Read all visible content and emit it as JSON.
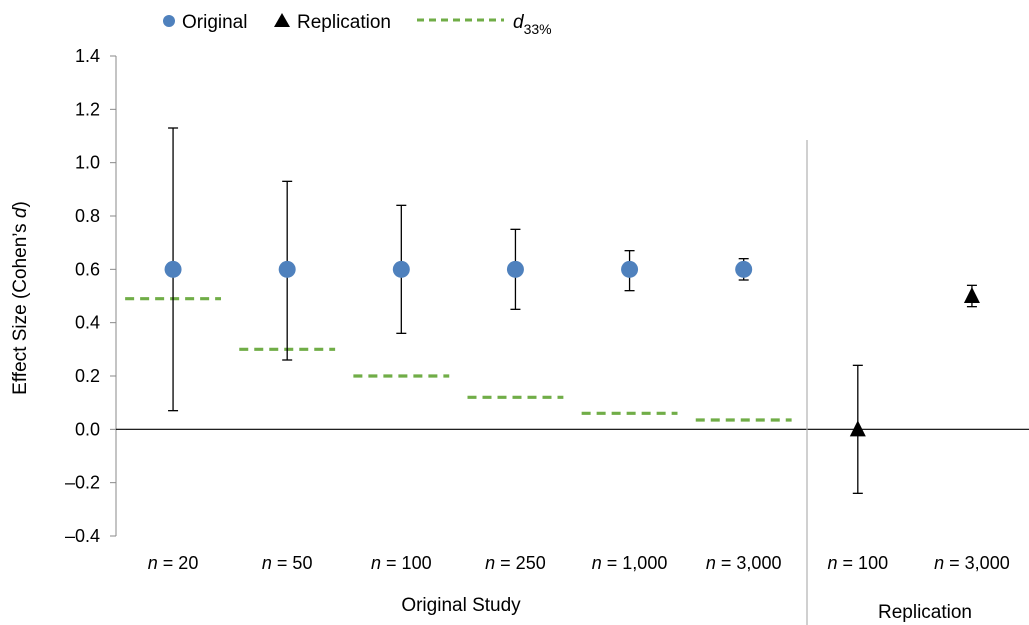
{
  "chart_data": {
    "type": "scatter",
    "ylabel_main": "Effect Size (Cohen’s ",
    "ylabel_italic": "d",
    "ylabel_close": ")",
    "ylim": [
      -0.4,
      1.4
    ],
    "yticks": [
      1.4,
      1.2,
      1.0,
      0.8,
      0.6,
      0.4,
      0.2,
      0.0,
      -0.2,
      -0.4
    ],
    "ytick_labels": [
      "1.4",
      "1.2",
      "1.0",
      "0.8",
      "0.6",
      "0.4",
      "0.2",
      "0.0",
      "–0.2",
      "–0.4"
    ],
    "grid": false,
    "legend_position": "top-left",
    "legend": [
      {
        "key": "original",
        "label": "Original",
        "marker": "circle",
        "color": "#4f81bd"
      },
      {
        "key": "replication",
        "label": "Replication",
        "marker": "triangle",
        "color": "#000000"
      },
      {
        "key": "d33",
        "label_main": "d",
        "label_sub": "33%",
        "marker": "dashed-line",
        "color": "#70ad47"
      }
    ],
    "groups": [
      {
        "label": "Original Study",
        "category_count": 6
      },
      {
        "label": "Replication",
        "category_count": 2
      }
    ],
    "categories": [
      {
        "n_prefix": "n",
        "n_value": "= 20"
      },
      {
        "n_prefix": "n",
        "n_value": "= 50"
      },
      {
        "n_prefix": "n",
        "n_value": "= 100"
      },
      {
        "n_prefix": "n",
        "n_value": "= 250"
      },
      {
        "n_prefix": "n",
        "n_value": "= 1,000"
      },
      {
        "n_prefix": "n",
        "n_value": "= 3,000"
      },
      {
        "n_prefix": "n",
        "n_value": "= 100"
      },
      {
        "n_prefix": "n",
        "n_value": "= 3,000"
      }
    ],
    "series": [
      {
        "key": "original",
        "name": "Original",
        "marker": "circle",
        "color": "#4f81bd",
        "points": [
          {
            "category_index": 0,
            "y": 0.6,
            "lower": 0.07,
            "upper": 1.13
          },
          {
            "category_index": 1,
            "y": 0.6,
            "lower": 0.26,
            "upper": 0.93
          },
          {
            "category_index": 2,
            "y": 0.6,
            "lower": 0.36,
            "upper": 0.84
          },
          {
            "category_index": 3,
            "y": 0.6,
            "lower": 0.45,
            "upper": 0.75
          },
          {
            "category_index": 4,
            "y": 0.6,
            "lower": 0.52,
            "upper": 0.67
          },
          {
            "category_index": 5,
            "y": 0.6,
            "lower": 0.56,
            "upper": 0.64
          }
        ]
      },
      {
        "key": "replication",
        "name": "Replication",
        "marker": "triangle",
        "color": "#000000",
        "points": [
          {
            "category_index": 6,
            "y": 0.0,
            "lower": -0.24,
            "upper": 0.24
          },
          {
            "category_index": 7,
            "y": 0.5,
            "lower": 0.46,
            "upper": 0.54
          }
        ]
      },
      {
        "key": "d33",
        "name": "d33%",
        "marker": "dashed-line",
        "color": "#70ad47",
        "points": [
          {
            "category_index": 0,
            "y": 0.49
          },
          {
            "category_index": 1,
            "y": 0.3
          },
          {
            "category_index": 2,
            "y": 0.2
          },
          {
            "category_index": 3,
            "y": 0.12
          },
          {
            "category_index": 4,
            "y": 0.06
          },
          {
            "category_index": 5,
            "y": 0.035
          }
        ]
      }
    ]
  }
}
